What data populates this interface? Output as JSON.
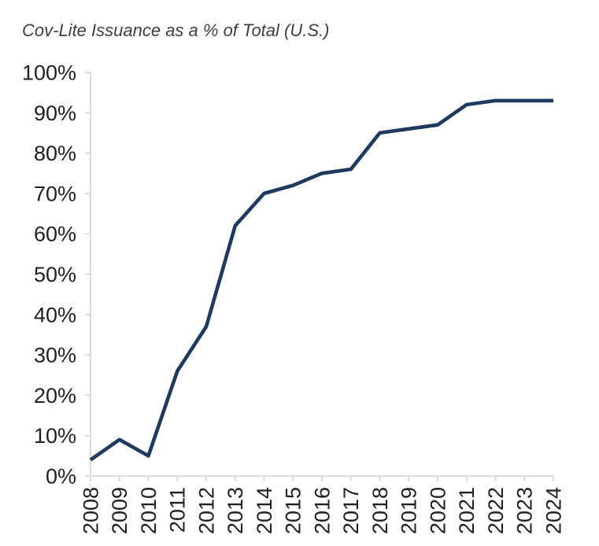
{
  "title": "Cov-Lite Issuance as a % of Total (U.S.)",
  "chart_data": {
    "type": "line",
    "title": "Cov-Lite Issuance as a % of Total (U.S.)",
    "categories": [
      "2008",
      "2009",
      "2010",
      "2011",
      "2012",
      "2013",
      "2014",
      "2015",
      "2016",
      "2017",
      "2018",
      "2019",
      "2020",
      "2021",
      "2022",
      "2023",
      "2024"
    ],
    "series": [
      {
        "name": "Cov-Lite Issuance % of Total (U.S.)",
        "values": [
          4,
          9,
          5,
          26,
          37,
          62,
          70,
          72,
          75,
          76,
          85,
          86,
          87,
          92,
          93,
          93,
          93
        ]
      }
    ],
    "xlabel": "",
    "ylabel": "",
    "ylim": [
      0,
      100
    ],
    "y_tick_step": 10,
    "y_tick_labels": [
      "0%",
      "10%",
      "20%",
      "30%",
      "40%",
      "50%",
      "60%",
      "70%",
      "80%",
      "90%",
      "100%"
    ],
    "x_tick_label_rotation_deg": -90,
    "grid": "off",
    "legend": "none",
    "colors": {
      "line": "#1e3a5f",
      "axis": "#d9d9d9",
      "tick": "#d9d9d9",
      "tick_label": "#212121",
      "title": "#3f3f3f",
      "background": "#ffffff"
    }
  }
}
